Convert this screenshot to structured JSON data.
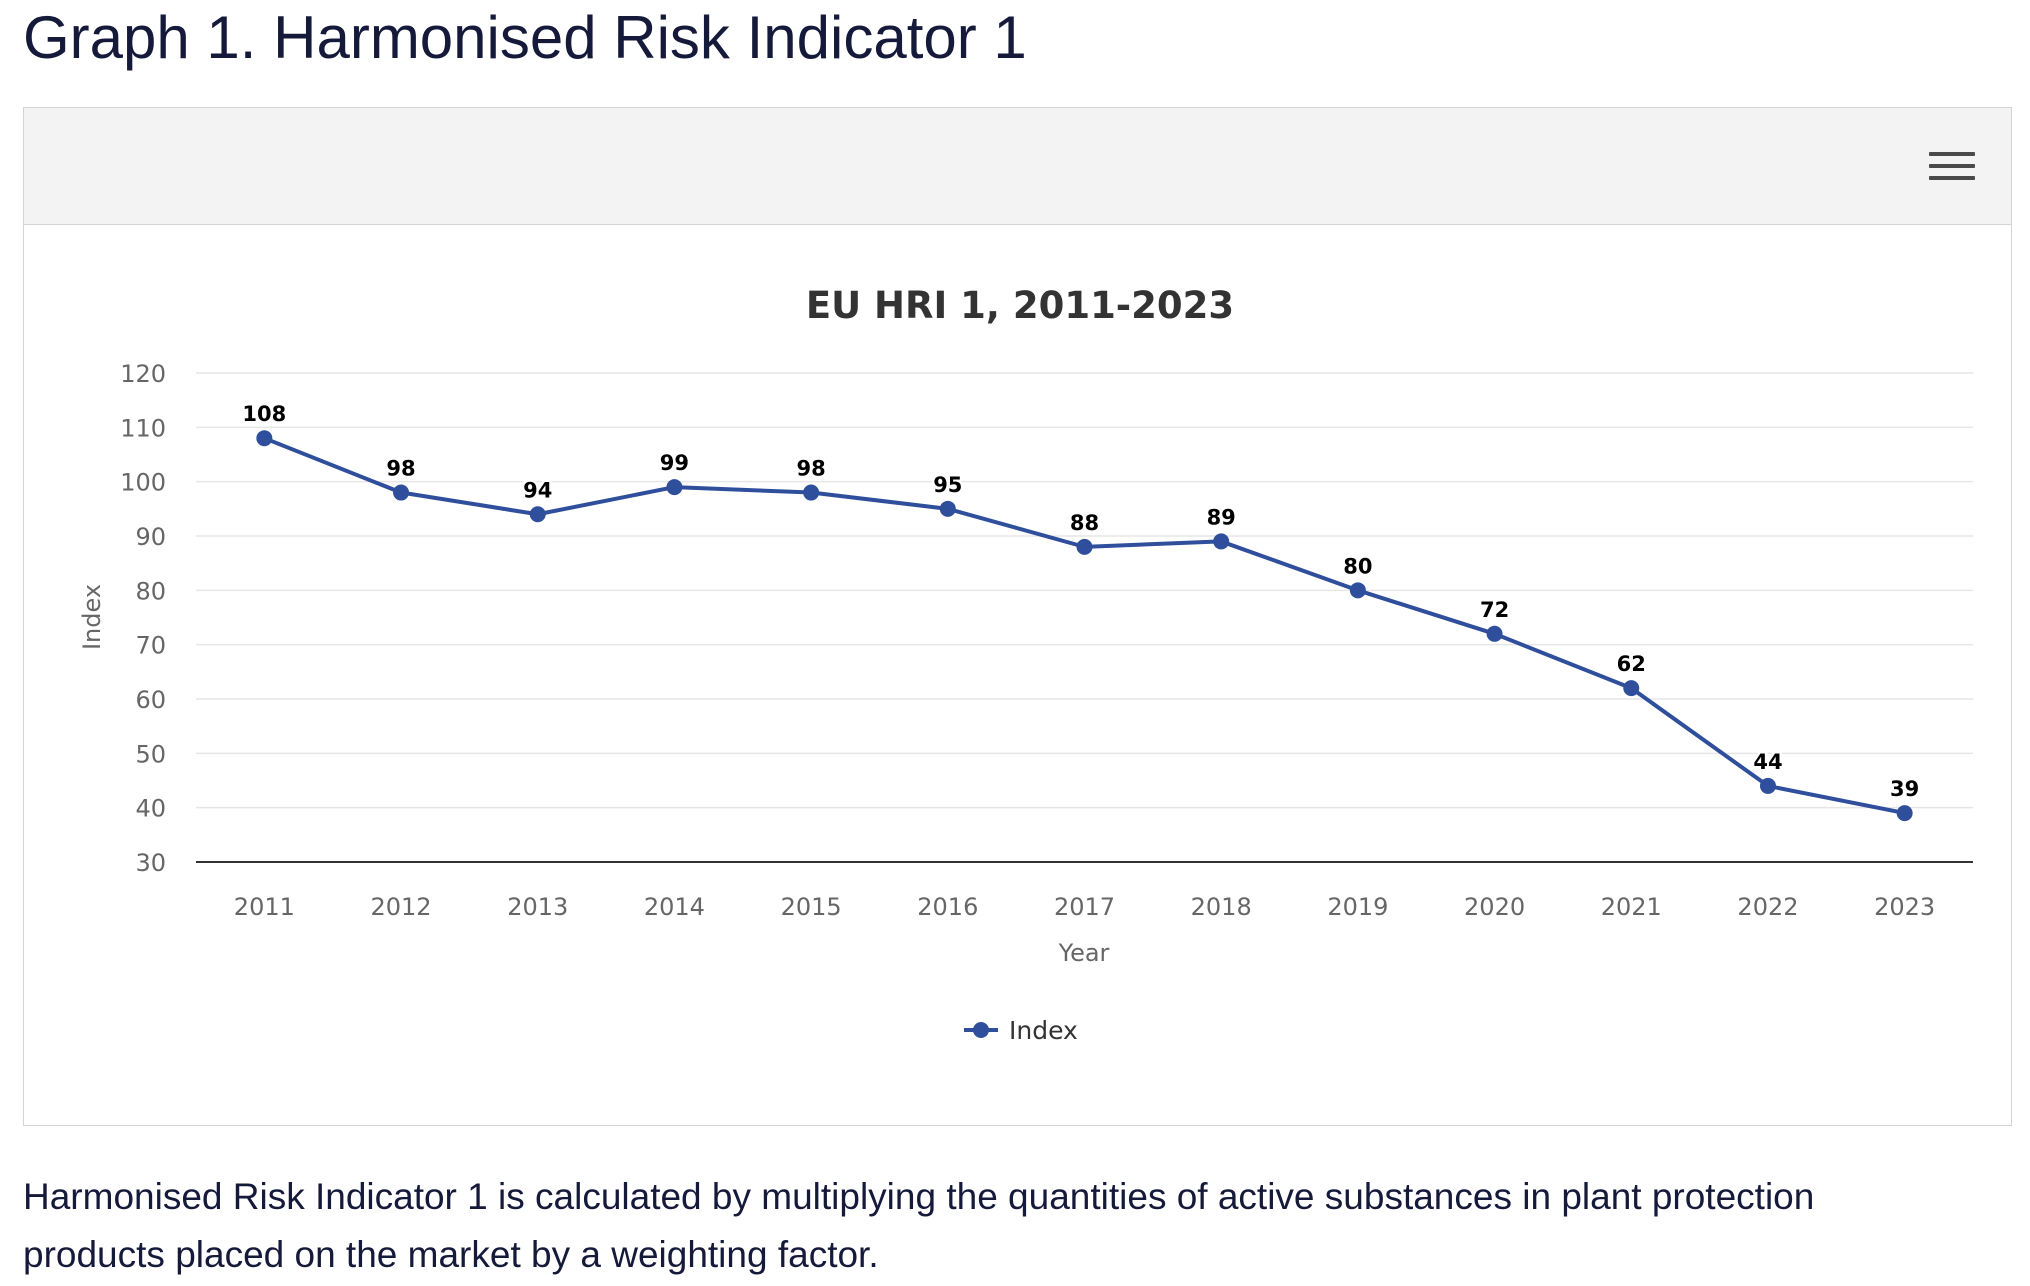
{
  "page": {
    "title": "Graph 1. Harmonised Risk Indicator 1",
    "caption": "Harmonised Risk Indicator 1 is calculated by multiplying the quantities of active substances in plant protection products placed on the market by a weighting factor.",
    "menu_icon": "hamburger-menu-icon"
  },
  "chart_data": {
    "type": "line",
    "title": "EU HRI 1, 2011-2023",
    "xlabel": "Year",
    "ylabel": "Index",
    "categories": [
      "2011",
      "2012",
      "2013",
      "2014",
      "2015",
      "2016",
      "2017",
      "2018",
      "2019",
      "2020",
      "2021",
      "2022",
      "2023"
    ],
    "series": [
      {
        "name": "Index",
        "values": [
          108,
          98,
          94,
          99,
          98,
          95,
          88,
          89,
          80,
          72,
          62,
          44,
          39
        ],
        "color": "#2f4f9c"
      }
    ],
    "ylim": [
      30,
      120
    ],
    "yticks": [
      30,
      40,
      50,
      60,
      70,
      80,
      90,
      100,
      110,
      120
    ],
    "grid": true,
    "data_labels": true,
    "legend": {
      "position": "bottom-center",
      "entries": [
        "Index"
      ]
    }
  }
}
